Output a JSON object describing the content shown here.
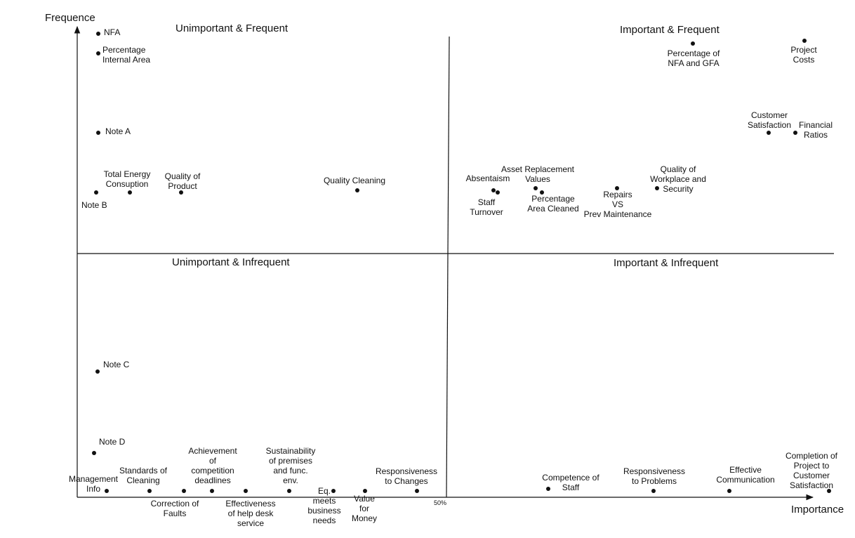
{
  "axes": {
    "y_title": "Frequence",
    "x_title": "Importance",
    "midpoint_label": "50%"
  },
  "quadrants": [
    {
      "id": "ul",
      "title": "Unimportant  & Frequent"
    },
    {
      "id": "ur",
      "title": "Important  & Frequent"
    },
    {
      "id": "ll",
      "title": "Unimportant  & Infrequent"
    },
    {
      "id": "lr",
      "title": "Important  & Infrequent"
    }
  ],
  "points": [
    {
      "id": "nfa",
      "label": [
        "NFA"
      ]
    },
    {
      "id": "percentage-internal-area",
      "label": [
        "Percentage",
        "Internal Area"
      ]
    },
    {
      "id": "note-a",
      "label": [
        "Note A"
      ]
    },
    {
      "id": "note-b",
      "label": [
        "Note B"
      ]
    },
    {
      "id": "total-energy-consuption",
      "label": [
        "Total Energy",
        "Consuption"
      ]
    },
    {
      "id": "quality-of-product",
      "label": [
        "Quality of",
        "Product"
      ]
    },
    {
      "id": "quality-cleaning",
      "label": [
        "Quality Cleaning"
      ]
    },
    {
      "id": "absentaism",
      "label": [
        "Absentaism"
      ]
    },
    {
      "id": "staff-turnover",
      "label": [
        "Staff",
        "Turnover"
      ]
    },
    {
      "id": "asset-replacement-values",
      "label": [
        "Asset Replacement",
        "Values"
      ]
    },
    {
      "id": "percentage-area-cleaned",
      "label": [
        "Percentage",
        "Area Cleaned"
      ]
    },
    {
      "id": "repairs-vs-prev-maintenance",
      "label": [
        "Repairs",
        "VS",
        "Prev Maintenance"
      ]
    },
    {
      "id": "quality-of-workplace-and-security",
      "label": [
        "Quality of",
        "Workplace and",
        "Security"
      ]
    },
    {
      "id": "percentage-of-nfa-and-gfa",
      "label": [
        "Percentage of",
        "NFA and GFA"
      ]
    },
    {
      "id": "project-costs",
      "label": [
        "Project",
        "Costs"
      ]
    },
    {
      "id": "customer-satisfaction",
      "label": [
        "Customer",
        "Satisfaction"
      ]
    },
    {
      "id": "financial-ratios",
      "label": [
        "Financial",
        "Ratios"
      ]
    },
    {
      "id": "note-c",
      "label": [
        "Note C"
      ]
    },
    {
      "id": "note-d",
      "label": [
        "Note D"
      ]
    },
    {
      "id": "management-info",
      "label": [
        "Management",
        "Info"
      ]
    },
    {
      "id": "standards-of-cleaning",
      "label": [
        "Standards of",
        "Cleaning"
      ]
    },
    {
      "id": "correction-of-faults",
      "label": [
        "Correction of",
        "Faults"
      ]
    },
    {
      "id": "achievement-of-competition-deadlines",
      "label": [
        "Achievement",
        "of",
        "competition",
        "deadlines"
      ]
    },
    {
      "id": "effectiveness-of-help-desk-service",
      "label": [
        "Effectiveness",
        "of help desk",
        "service"
      ]
    },
    {
      "id": "sustainability-of-premises",
      "label": [
        "Sustainability",
        "of premises",
        "and func.",
        "env."
      ]
    },
    {
      "id": "eq-meets-business-needs",
      "label": [
        "Eq.",
        "meets",
        "business",
        "needs"
      ]
    },
    {
      "id": "value-for-money",
      "label": [
        "Value",
        "for",
        "Money"
      ]
    },
    {
      "id": "responsiveness-to-changes",
      "label": [
        "Responsiveness",
        "to Changes"
      ]
    },
    {
      "id": "competence-of-staff",
      "label": [
        "Competence of",
        "Staff"
      ]
    },
    {
      "id": "responsiveness-to-problems",
      "label": [
        "Responsiveness",
        "to Problems"
      ]
    },
    {
      "id": "effective-communication",
      "label": [
        "Effective",
        "Communication"
      ]
    },
    {
      "id": "completion-of-project",
      "label": [
        "Completion of",
        "Project to",
        "Customer",
        "Satisfaction"
      ]
    }
  ]
}
